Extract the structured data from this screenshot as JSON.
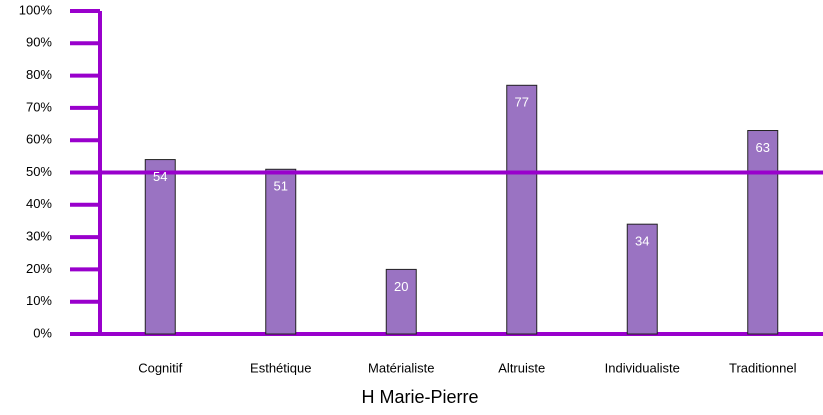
{
  "chart_data": {
    "type": "bar",
    "x_label": "H Marie-Pierre",
    "categories": [
      "Cognitif",
      "Esthétique",
      "Matérialiste",
      "Altruiste",
      "Individualiste",
      "Traditionnel"
    ],
    "values": [
      54,
      51,
      20,
      77,
      34,
      63
    ],
    "color": "#9a73c2",
    "ylim": [
      0,
      100
    ],
    "yticks": [
      {
        "value": 0,
        "label": "0%"
      },
      {
        "value": 10,
        "label": "10%"
      },
      {
        "value": 20,
        "label": "20%"
      },
      {
        "value": 30,
        "label": "30%"
      },
      {
        "value": 40,
        "label": "40%"
      },
      {
        "value": 50,
        "label": "50%"
      },
      {
        "value": 60,
        "label": "60%"
      },
      {
        "value": 70,
        "label": "70%"
      },
      {
        "value": 80,
        "label": "80%"
      },
      {
        "value": 90,
        "label": "90%"
      },
      {
        "value": 100,
        "label": "100%"
      }
    ],
    "reference_line": 50,
    "axis_color": "#9900cc"
  }
}
